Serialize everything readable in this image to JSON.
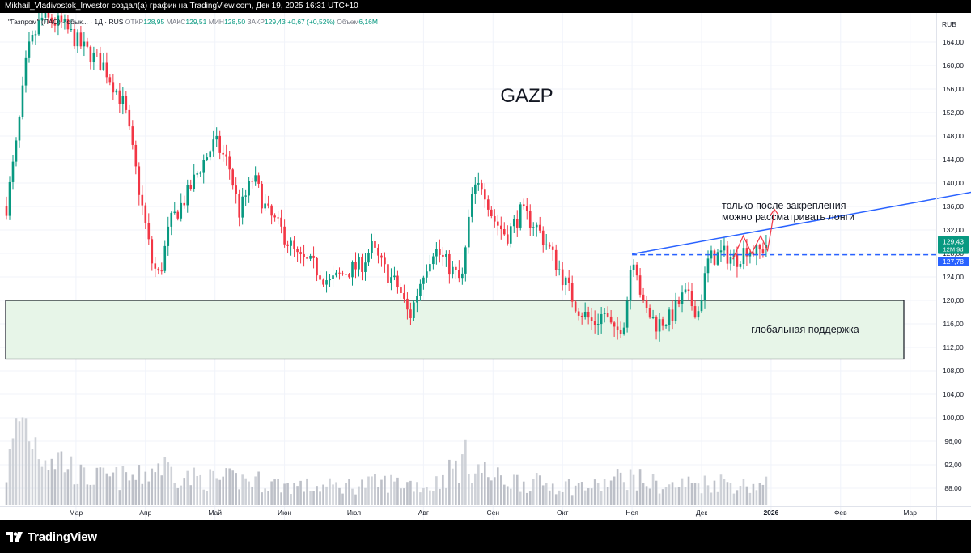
{
  "attribution": "Mikhail_Vladivostok_Investor создал(а) график на TradingView.com, Дек 19, 2025 16:31 UTC+10",
  "brand": {
    "name": "TradingView",
    "logo_icon": "tradingview-logo-icon"
  },
  "legend": {
    "symbol": "\"Газпром\" (ПАО) - обык... · 1Д · RUS",
    "open_label": "ОТКР",
    "open": "128,95",
    "high_label": "МАКС",
    "high": "129,51",
    "low_label": "МИН",
    "low": "128,50",
    "close_label": "ЗАКР",
    "close": "129,43",
    "change": "+0,67 (+0,52%)",
    "volume_label": "Объем",
    "volume": "6,16M"
  },
  "currency": "RUB",
  "price_badges": {
    "last": "129,43",
    "countdown": "12M 9d",
    "level": "127,78"
  },
  "colors": {
    "up": "#089981",
    "down": "#f23645",
    "trend": "#2962ff",
    "zone_fill": "#e7f5e8",
    "arrow": "#f23645"
  },
  "chart_data": {
    "type": "candlestick",
    "title": "GAZP",
    "ylim": [
      84,
      168
    ],
    "y_ticks": [
      88,
      92,
      96,
      100,
      104,
      108,
      112,
      116,
      120,
      124,
      128,
      132,
      136,
      140,
      144,
      148,
      152,
      156,
      160,
      164
    ],
    "y_tick_labels": [
      "88,00",
      "92,00",
      "96,00",
      "100,00",
      "104,00",
      "108,00",
      "112,00",
      "116,00",
      "120,00",
      "124,00",
      "128,00",
      "132,00",
      "136,00",
      "140,00",
      "144,00",
      "148,00",
      "152,00",
      "156,00",
      "160,00",
      "164,00"
    ],
    "x_labels": [
      "Мар",
      "Апр",
      "Май",
      "Июн",
      "Июл",
      "Авг",
      "Сен",
      "Окт",
      "Ноя",
      "Дек",
      "2026",
      "Фев",
      "Мар"
    ],
    "x_label_month_index": [
      2,
      3,
      4,
      5,
      6,
      7,
      8,
      9,
      10,
      11,
      12,
      13,
      14
    ],
    "price_path": [
      [
        1.0,
        136
      ],
      [
        1.15,
        147
      ],
      [
        1.3,
        162
      ],
      [
        1.5,
        168
      ],
      [
        1.8,
        167
      ],
      [
        2.1,
        163
      ],
      [
        2.4,
        160
      ],
      [
        2.7,
        153
      ],
      [
        2.95,
        136
      ],
      [
        3.1,
        126
      ],
      [
        3.2,
        124
      ],
      [
        3.35,
        133
      ],
      [
        3.6,
        138
      ],
      [
        3.8,
        143
      ],
      [
        4.0,
        147
      ],
      [
        4.2,
        143
      ],
      [
        4.35,
        135
      ],
      [
        4.55,
        141
      ],
      [
        4.75,
        135
      ],
      [
        4.95,
        132
      ],
      [
        5.2,
        127
      ],
      [
        5.4,
        126
      ],
      [
        5.65,
        123
      ],
      [
        5.9,
        125
      ],
      [
        6.1,
        126
      ],
      [
        6.25,
        129
      ],
      [
        6.45,
        125
      ],
      [
        6.65,
        122
      ],
      [
        6.8,
        117
      ],
      [
        7.0,
        125
      ],
      [
        7.15,
        129
      ],
      [
        7.35,
        126
      ],
      [
        7.55,
        123
      ],
      [
        7.7,
        138
      ],
      [
        7.85,
        140
      ],
      [
        8.0,
        134
      ],
      [
        8.2,
        131
      ],
      [
        8.4,
        135
      ],
      [
        8.6,
        133
      ],
      [
        8.8,
        129
      ],
      [
        9.0,
        124
      ],
      [
        9.2,
        119
      ],
      [
        9.45,
        116
      ],
      [
        9.6,
        118
      ],
      [
        9.75,
        114
      ],
      [
        9.9,
        117
      ],
      [
        10.0,
        128
      ],
      [
        10.05,
        127
      ],
      [
        10.15,
        119
      ],
      [
        10.35,
        116
      ],
      [
        10.55,
        117
      ],
      [
        10.75,
        121
      ],
      [
        10.95,
        118
      ],
      [
        11.1,
        127
      ],
      [
        11.3,
        128
      ],
      [
        11.5,
        127
      ],
      [
        11.65,
        129
      ],
      [
        11.8,
        128
      ],
      [
        11.95,
        129.4
      ]
    ],
    "volume_path": [
      [
        1.0,
        3.5
      ],
      [
        1.2,
        10
      ],
      [
        1.5,
        6
      ],
      [
        1.8,
        5
      ],
      [
        2.1,
        3
      ],
      [
        2.5,
        3
      ],
      [
        2.9,
        3
      ],
      [
        3.2,
        4.5
      ],
      [
        3.6,
        3
      ],
      [
        4.0,
        2.8
      ],
      [
        4.5,
        2.8
      ],
      [
        5.0,
        2.2
      ],
      [
        5.5,
        2
      ],
      [
        6.0,
        2.2
      ],
      [
        6.5,
        2.5
      ],
      [
        6.8,
        2.4
      ],
      [
        7.1,
        2
      ],
      [
        7.6,
        5
      ],
      [
        8.0,
        3
      ],
      [
        8.5,
        2.5
      ],
      [
        9.0,
        2.2
      ],
      [
        9.5,
        2
      ],
      [
        9.9,
        3.2
      ],
      [
        10.2,
        2.6
      ],
      [
        10.5,
        2
      ],
      [
        10.8,
        2.4
      ],
      [
        11.0,
        2.4
      ],
      [
        11.3,
        2.6
      ],
      [
        11.6,
        2.2
      ],
      [
        11.95,
        2.2
      ]
    ],
    "volume_max": 12,
    "support_zone": {
      "low": 110,
      "high": 120,
      "label": "глобальная поддержка"
    },
    "level_line": {
      "value": 127.78,
      "from_month": 10.0
    },
    "trend_line": [
      [
        10.0,
        127.9
      ],
      [
        15.15,
        139.0
      ]
    ],
    "annotation": {
      "line1": "только после закрепления",
      "line2": "можно рассматривать лонги"
    },
    "zig_arrow": [
      [
        11.45,
        127
      ],
      [
        11.6,
        131
      ],
      [
        11.72,
        128
      ],
      [
        11.85,
        131
      ],
      [
        11.95,
        128.5
      ],
      [
        12.05,
        135.5
      ]
    ],
    "last_price_line": 129.43
  }
}
